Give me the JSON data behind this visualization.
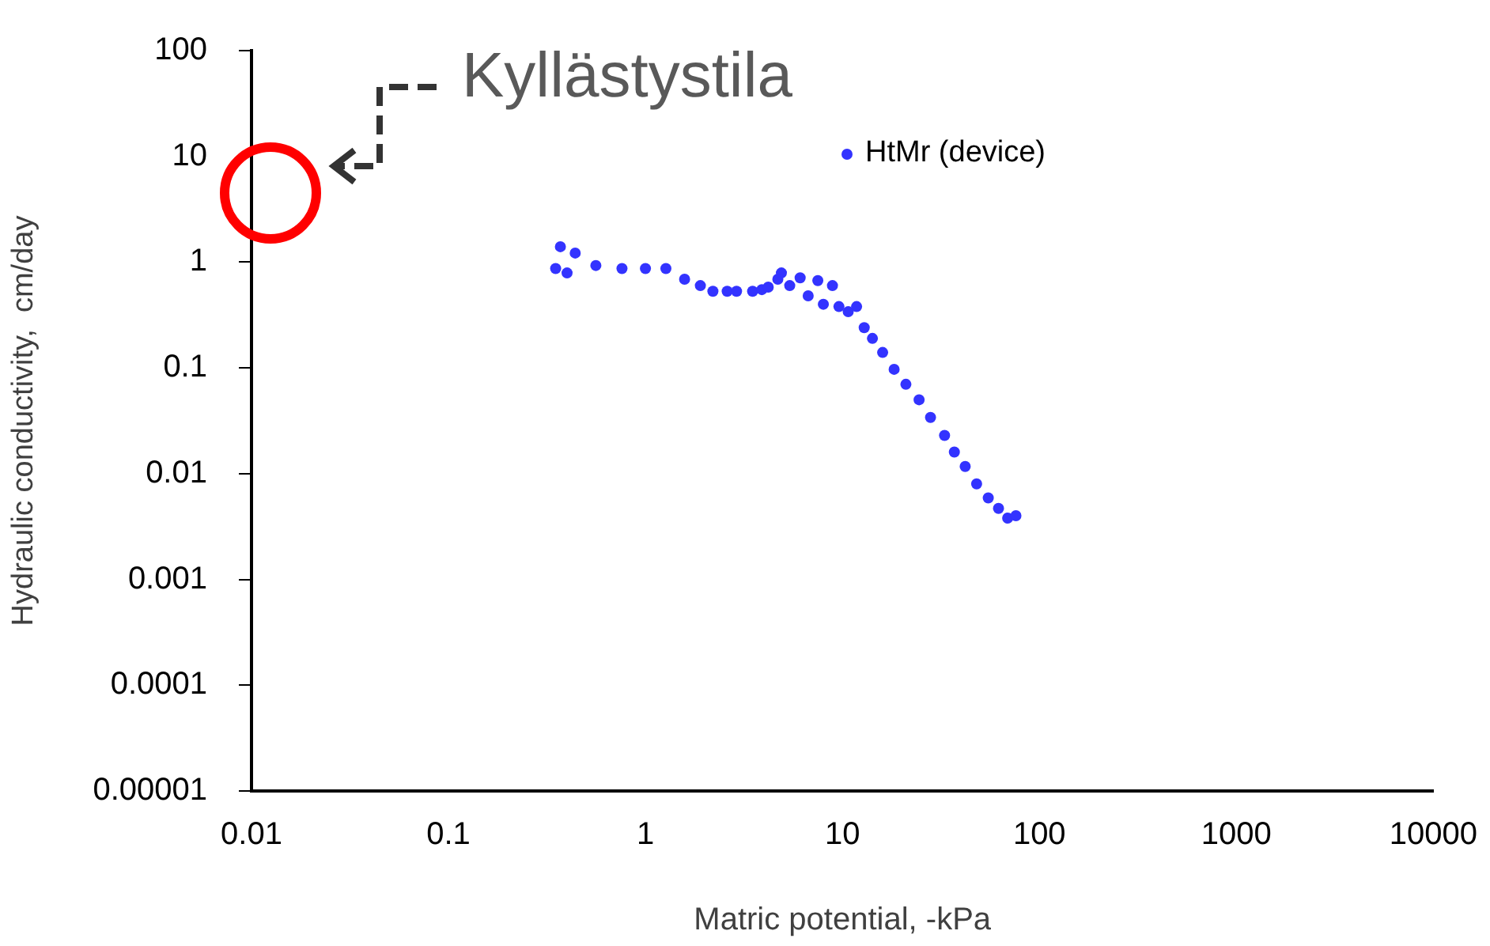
{
  "chart_data": {
    "type": "scatter",
    "xlabel": "Matric potential, -kPa",
    "ylabel": "Hydraulic conductivity,  cm/day",
    "log": "xy",
    "marker": "circle",
    "legend": "top right",
    "grid": false,
    "xlim": [
      0.01,
      10000
    ],
    "xticks": [
      0.01,
      0.1,
      1,
      10,
      100,
      1000,
      10000
    ],
    "ylim": [
      1e-05,
      100
    ],
    "yticks": [
      {
        "value": 1e-05,
        "label": "0.00001"
      },
      0.0001,
      0.001,
      0.01,
      0.1,
      1,
      10,
      100
    ],
    "annotations": [
      "Kyllästystila"
    ],
    "series": [
      {
        "name": "HtMr (device)",
        "color": "#3333ff",
        "x": [
          0.37,
          0.44,
          0.35,
          0.4,
          0.56,
          0.76,
          1.0,
          1.27,
          1.58,
          1.9,
          2.2,
          2.6,
          2.9,
          3.5,
          3.9,
          4.2,
          4.7,
          4.9,
          5.4,
          6.1,
          6.7,
          7.5,
          8.0,
          8.9,
          9.6,
          10.7,
          11.8,
          12.9,
          14.2,
          16,
          18.3,
          21,
          24.5,
          28,
          33,
          37,
          42,
          48,
          55,
          62,
          69,
          76
        ],
        "values": [
          1.4,
          1.22,
          0.87,
          0.79,
          0.93,
          0.87,
          0.87,
          0.87,
          0.69,
          0.6,
          0.53,
          0.53,
          0.53,
          0.53,
          0.55,
          0.58,
          0.69,
          0.79,
          0.6,
          0.71,
          0.48,
          0.67,
          0.4,
          0.6,
          0.38,
          0.34,
          0.38,
          0.24,
          0.19,
          0.14,
          0.097,
          0.07,
          0.05,
          0.034,
          0.023,
          0.016,
          0.0117,
          0.008,
          0.0059,
          0.0047,
          0.0038,
          0.004
        ]
      }
    ]
  }
}
